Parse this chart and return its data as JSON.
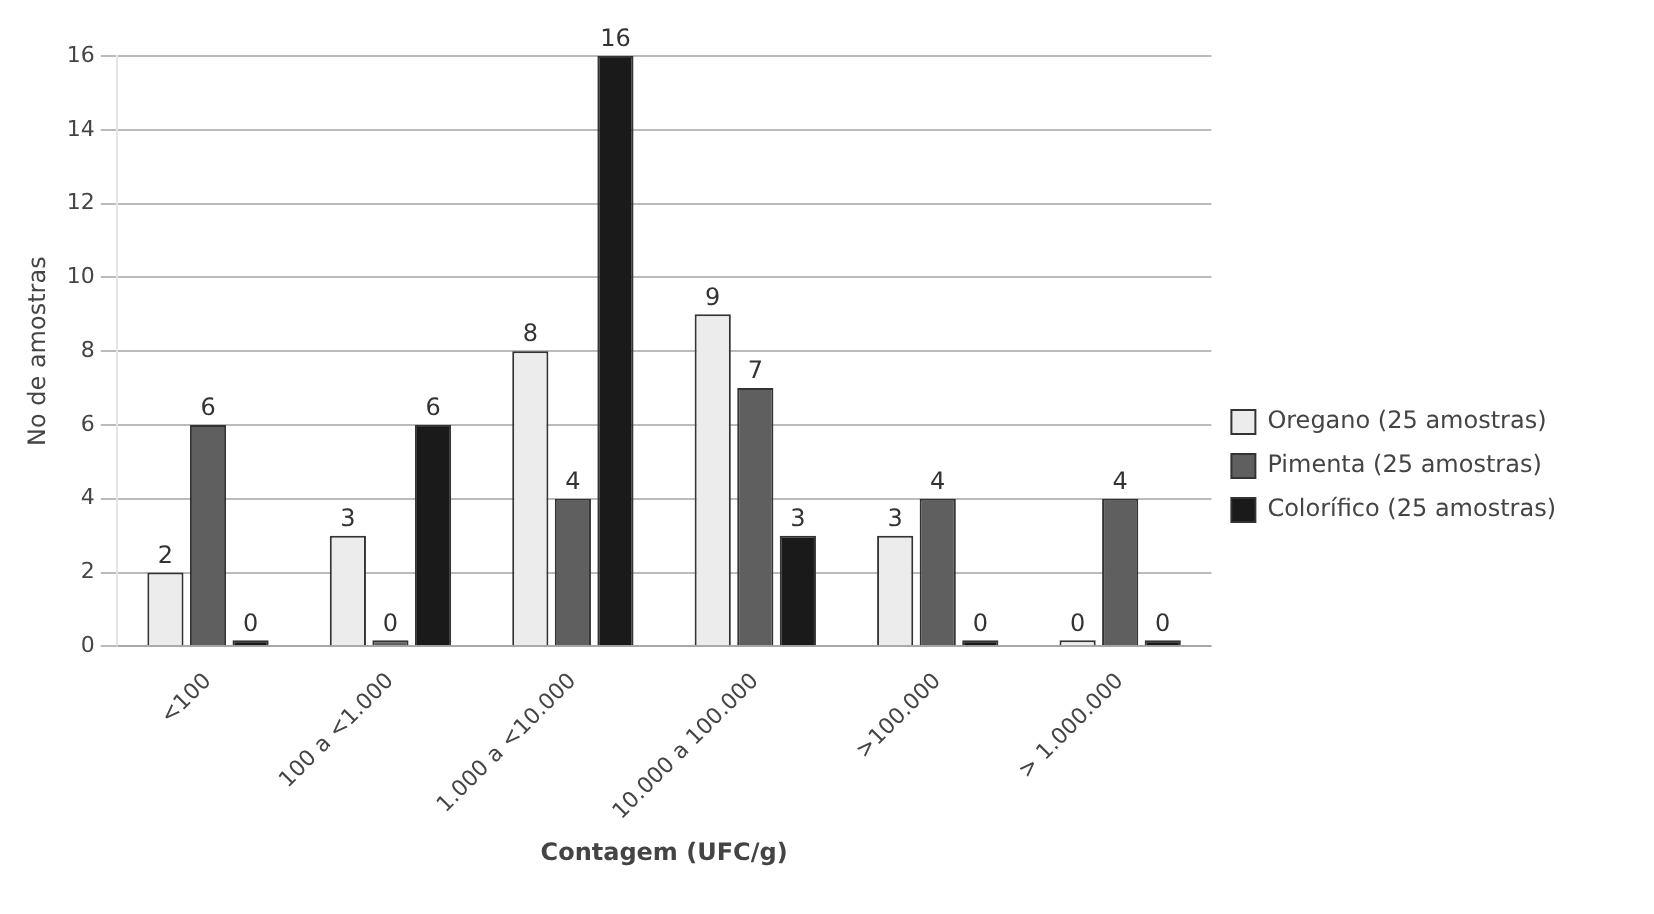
{
  "chart_data": {
    "type": "bar",
    "xlabel": "Contagem (UFC/g)",
    "ylabel": "No de amostras",
    "categories": [
      "<100",
      "100 a <1.000",
      "1.000 a <10.000",
      "10.000 a 100.000",
      ">100.000",
      "> 1.000.000"
    ],
    "series": [
      {
        "name": "Oregano (25 amostras)",
        "color": "#ececec",
        "values": [
          2,
          3,
          8,
          9,
          3,
          0
        ]
      },
      {
        "name": "Pimenta (25 amostras)",
        "color": "#5f5f5f",
        "values": [
          6,
          0,
          4,
          7,
          4,
          4
        ]
      },
      {
        "name": "Colorífico (25 amostras)",
        "color": "#1a1a1a",
        "values": [
          0,
          6,
          16,
          3,
          0,
          0
        ]
      }
    ],
    "ylim": [
      0,
      16
    ],
    "yticks": [
      0,
      2,
      4,
      6,
      8,
      10,
      12,
      14,
      16
    ],
    "grid": "y",
    "legend": "right",
    "data_labels": true
  }
}
